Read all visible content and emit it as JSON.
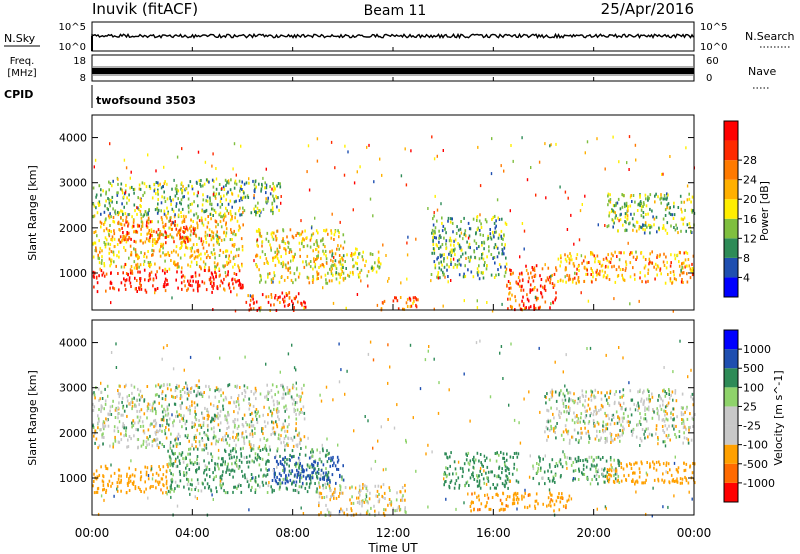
{
  "header": {
    "station": "Inuvik (fitACF)",
    "beam": "Beam 11",
    "date": "25/Apr/2016"
  },
  "aux": {
    "nsky_label": "N.Sky",
    "nsky_top": "10^5",
    "nsky_bottom": "10^0",
    "nsearch_label": "N.Search",
    "freq_label_1": "Freq.",
    "freq_label_2": "[MHz]",
    "freq_top": "18",
    "freq_bottom": "8",
    "nave_label": "Nave",
    "nave_top": "60",
    "nave_bottom": "0",
    "cpid_label": "CPID",
    "cpid_value": "twofsound 3503"
  },
  "colors": {
    "power": [
      "#0000ff",
      "#1f4fb0",
      "#2e8b57",
      "#7fbf3f",
      "#ffee00",
      "#ffb000",
      "#ff7a00",
      "#ff2a00",
      "#ff0000"
    ],
    "velocity": [
      "#ff0000",
      "#ff6a00",
      "#ffa000",
      "#c8c8c8",
      "#c8c8c8",
      "#8fd36b",
      "#2e8b57",
      "#1f4fb0",
      "#0000ff"
    ]
  },
  "chart_data": [
    {
      "type": "heatmap",
      "title": "",
      "xlabel": "",
      "ylabel": "Slant Range [km]",
      "xlim": [
        0,
        24
      ],
      "ylim": [
        180,
        4500
      ],
      "x_ticks": [
        "00:00",
        "04:00",
        "08:00",
        "12:00",
        "16:00",
        "20:00",
        "00:00"
      ],
      "y_ticks": [
        "1000",
        "2000",
        "3000",
        "4000"
      ],
      "colorbar_label": "Power [dB]",
      "colorbar_ticks": [
        "4",
        "8",
        "12",
        "16",
        "20",
        "24",
        "28"
      ],
      "colorbar_range": [
        0,
        30
      ],
      "regions": [
        {
          "t": [
            0.0,
            6.0
          ],
          "r": [
            600,
            1100
          ],
          "v": 27
        },
        {
          "t": [
            0.0,
            6.0
          ],
          "r": [
            1100,
            2300
          ],
          "v": 17
        },
        {
          "t": [
            1.0,
            4.5
          ],
          "r": [
            1700,
            2200
          ],
          "v": 23
        },
        {
          "t": [
            0.0,
            7.5
          ],
          "r": [
            2300,
            3100
          ],
          "v": 11
        },
        {
          "t": [
            6.0,
            8.5
          ],
          "r": [
            200,
            600
          ],
          "v": 25
        },
        {
          "t": [
            6.5,
            10.0
          ],
          "r": [
            800,
            2000
          ],
          "v": 16
        },
        {
          "t": [
            9.5,
            11.5
          ],
          "r": [
            900,
            1500
          ],
          "v": 14
        },
        {
          "t": [
            11.5,
            13.0
          ],
          "r": [
            200,
            500
          ],
          "v": 22
        },
        {
          "t": [
            13.5,
            16.5
          ],
          "r": [
            900,
            2300
          ],
          "v": 10
        },
        {
          "t": [
            16.5,
            18.5
          ],
          "r": [
            200,
            1200
          ],
          "v": 24
        },
        {
          "t": [
            18.5,
            24.0
          ],
          "r": [
            800,
            1500
          ],
          "v": 19
        },
        {
          "t": [
            20.5,
            24.0
          ],
          "r": [
            1900,
            2800
          ],
          "v": 12
        }
      ]
    },
    {
      "type": "heatmap",
      "title": "",
      "xlabel": "Time UT",
      "ylabel": "Slant Range [km]",
      "xlim": [
        0,
        24
      ],
      "ylim": [
        180,
        4500
      ],
      "x_ticks": [
        "00:00",
        "04:00",
        "08:00",
        "12:00",
        "16:00",
        "20:00",
        "00:00"
      ],
      "y_ticks": [
        "1000",
        "2000",
        "3000",
        "4000"
      ],
      "colorbar_label": "Velocity [m s^-1]",
      "colorbar_ticks": [
        "1000",
        "500",
        "100",
        "25",
        "-25",
        "-100",
        "-500",
        "-1000"
      ],
      "regions": [
        {
          "t": [
            0.0,
            3.0
          ],
          "r": [
            700,
            1300
          ],
          "v": -300
        },
        {
          "t": [
            3.0,
            9.5
          ],
          "r": [
            700,
            1700
          ],
          "v": 150
        },
        {
          "t": [
            7.0,
            10.0
          ],
          "r": [
            900,
            1500
          ],
          "v": 700
        },
        {
          "t": [
            0.0,
            8.5
          ],
          "r": [
            1700,
            3100
          ],
          "v": 0
        },
        {
          "t": [
            9.0,
            12.5
          ],
          "r": [
            200,
            900
          ],
          "v": -60
        },
        {
          "t": [
            14.0,
            17.0
          ],
          "r": [
            800,
            1600
          ],
          "v": 200
        },
        {
          "t": [
            15.0,
            19.0
          ],
          "r": [
            300,
            700
          ],
          "v": -400
        },
        {
          "t": [
            17.5,
            21.0
          ],
          "r": [
            900,
            1500
          ],
          "v": 150
        },
        {
          "t": [
            20.5,
            24.0
          ],
          "r": [
            900,
            1400
          ],
          "v": -350
        },
        {
          "t": [
            18.0,
            24.0
          ],
          "r": [
            1800,
            3000
          ],
          "v": 0
        }
      ]
    }
  ]
}
